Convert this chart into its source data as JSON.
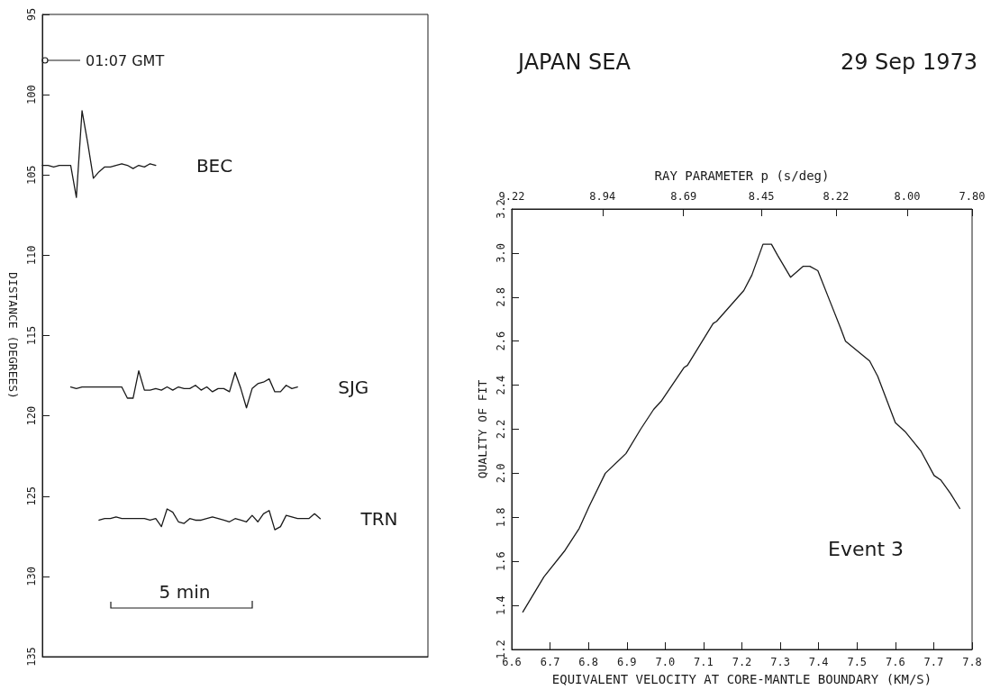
{
  "chart_data": [
    {
      "type": "line",
      "ylabel": "DISTANCE (DEGREES)",
      "categories": [
        null,
        null,
        null,
        null,
        null,
        null,
        null,
        null,
        null,
        null,
        null,
        null,
        null,
        null,
        null,
        null,
        null,
        null,
        null,
        null,
        null,
        null,
        null,
        null,
        null,
        null,
        null,
        null,
        null,
        null,
        null,
        null,
        null,
        null,
        null,
        null,
        null,
        null,
        null,
        null,
        null,
        null,
        null,
        null,
        null,
        null,
        null,
        null,
        null,
        null,
        null,
        null,
        null,
        null,
        null,
        null,
        null,
        null,
        null,
        null,
        null,
        null,
        null,
        null,
        null,
        null,
        null,
        null,
        null
      ],
      "ylim": [
        135,
        95
      ],
      "yticks": [
        95,
        100,
        105,
        110,
        115,
        120,
        125,
        130,
        135
      ],
      "tick_labels": "y",
      "marker": "none",
      "annotations": [
        "01:07 GMT",
        "5 min"
      ],
      "series": [
        {
          "name": "BEC",
          "color": "#1a1a1a",
          "values": [
            104.4,
            104.4,
            104.5,
            104.4,
            104.4,
            104.4,
            106.4,
            101,
            103,
            105.2,
            104.8,
            104.5,
            104.5,
            104.4,
            104.3,
            104.4,
            104.6,
            104.4,
            104.5,
            104.3,
            104.4,
            null,
            null,
            null,
            null,
            null,
            null,
            null,
            null,
            null,
            null,
            null,
            null,
            null,
            null,
            null,
            null,
            null,
            null,
            null,
            null,
            null,
            null,
            null,
            null,
            null,
            null,
            null,
            null,
            null,
            null,
            null,
            null,
            null,
            null,
            null,
            null,
            null,
            null,
            null,
            null,
            null,
            null,
            null,
            null,
            null,
            null,
            null,
            null
          ]
        },
        {
          "name": "SJG",
          "color": "#1a1a1a",
          "values": [
            null,
            null,
            null,
            null,
            null,
            118.2,
            118.3,
            118.2,
            118.2,
            118.2,
            118.2,
            118.2,
            118.2,
            118.2,
            118.2,
            118.9,
            118.9,
            117.2,
            118.4,
            118.4,
            118.3,
            118.4,
            118.2,
            118.4,
            118.2,
            118.3,
            118.3,
            118.1,
            118.4,
            118.2,
            118.5,
            118.3,
            118.3,
            118.5,
            117.3,
            118.3,
            119.5,
            118.3,
            118,
            117.9,
            117.7,
            118.5,
            118.5,
            118.1,
            118.3,
            118.2,
            null,
            null,
            null,
            null,
            null,
            null,
            null,
            null,
            null,
            null,
            null,
            null,
            null,
            null,
            null,
            null,
            null,
            null,
            null,
            null,
            null,
            null,
            null
          ]
        },
        {
          "name": "TRN",
          "color": "#1a1a1a",
          "values": [
            null,
            null,
            null,
            null,
            null,
            null,
            null,
            null,
            null,
            null,
            126.5,
            126.4,
            126.4,
            126.3,
            126.4,
            126.4,
            126.4,
            126.4,
            126.4,
            126.5,
            126.4,
            126.9,
            125.8,
            126,
            126.6,
            126.7,
            126.4,
            126.5,
            126.5,
            126.4,
            126.3,
            126.4,
            126.5,
            126.6,
            126.4,
            126.5,
            126.6,
            126.2,
            126.6,
            126.1,
            125.9,
            127.1,
            126.9,
            126.2,
            126.3,
            126.4,
            126.4,
            126.4,
            126.1,
            126.4,
            null,
            null,
            null,
            null,
            null,
            null,
            null,
            null,
            null,
            null,
            null,
            null,
            null,
            null,
            null,
            null,
            null,
            null,
            null
          ]
        }
      ]
    },
    {
      "type": "line",
      "title": "JAPAN SEA",
      "subtitle": "29 Sep 1973",
      "xlabel": "EQUIVALENT VELOCITY AT CORE-MANTLE BOUNDARY (KM/S)",
      "ylabel": "QUALITY OF FIT",
      "x2label": "RAY PARAMETER p (s/deg)",
      "xlim": [
        6.6,
        7.8
      ],
      "xticks": [
        6.6,
        6.7,
        6.8,
        6.9,
        {
          "value": 7,
          "label": "7.0"
        },
        7.1,
        7.2,
        7.3,
        7.4,
        7.5,
        7.6,
        7.7,
        7.8
      ],
      "x2lim": [
        9.22,
        7.8
      ],
      "x2ticks": [
        9.22,
        8.94,
        8.69,
        8.45,
        8.22,
        {
          "value": 8,
          "label": "8.00"
        },
        {
          "value": 7.8,
          "label": "7.80"
        }
      ],
      "ylim": [
        1.2,
        3.2
      ],
      "yticks": [
        1.2,
        1.4,
        1.6,
        1.8,
        {
          "value": 2,
          "label": "2.0"
        },
        2.2,
        2.4,
        2.6,
        2.8,
        {
          "value": 3,
          "label": "3.0"
        },
        3.2
      ],
      "marker": "none",
      "annotations": [
        "Event 3"
      ],
      "series": [
        {
          "color": "#1a1a1a",
          "x": [
            6.629,
            6.684,
            6.739,
            6.776,
            6.802,
            6.844,
            6.898,
            6.936,
            6.97,
            6.991,
            7.049,
            7.058,
            7.125,
            7.134,
            7.205,
            7.226,
            7.255,
            7.277,
            7.293,
            7.327,
            7.36,
            7.377,
            7.398,
            7.432,
            7.457,
            7.47,
            7.533,
            7.554,
            7.6,
            7.625,
            7.667,
            7.701,
            7.718,
            7.743,
            7.768
          ],
          "values": [
            1.37,
            1.53,
            1.65,
            1.75,
            1.85,
            2,
            2.09,
            2.2,
            2.29,
            2.33,
            2.48,
            2.49,
            2.68,
            2.69,
            2.83,
            2.9,
            3.04,
            3.04,
            2.99,
            2.89,
            2.94,
            2.94,
            2.92,
            2.77,
            2.66,
            2.6,
            2.51,
            2.44,
            2.23,
            2.19,
            2.1,
            1.99,
            1.97,
            1.91,
            1.84
          ]
        }
      ]
    }
  ]
}
